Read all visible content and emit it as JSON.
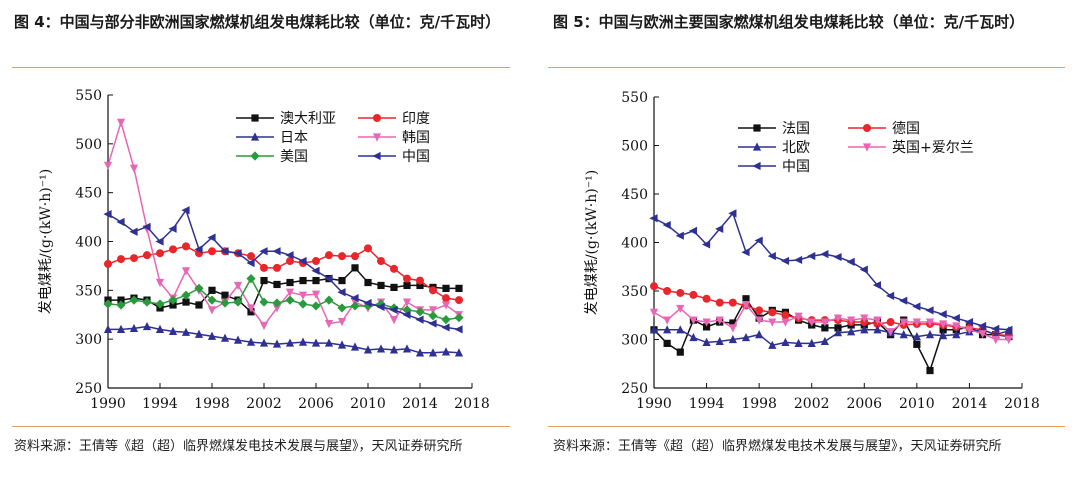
{
  "figures": [
    {
      "title": "图 4：中国与部分非欧洲国家燃煤机组发电煤耗比较（单位：克/千瓦时）",
      "source": "资料来源：王倩等《超（超）临界燃煤发电技术发展与展望》，天风证券研究所"
    },
    {
      "title": "图 5：中国与欧洲主要国家燃煤机组发电煤耗比较（单位：克/千瓦时）",
      "source": "资料来源：王倩等《超（超）临界燃煤发电技术发展与展望》，天风证券研究所"
    }
  ],
  "chart_data": [
    {
      "type": "line",
      "ylabel": "发电煤耗/(g·(kW·h)⁻¹)",
      "xlim": [
        1990,
        2018
      ],
      "ylim": [
        250,
        550
      ],
      "xticks": [
        1990,
        1994,
        1998,
        2002,
        2006,
        2010,
        2014,
        2018
      ],
      "yticks": [
        250,
        300,
        350,
        400,
        450,
        500,
        550
      ],
      "grid": false,
      "legend_position": "top-right",
      "x": [
        1990,
        1991,
        1992,
        1993,
        1994,
        1995,
        1996,
        1997,
        1998,
        1999,
        2000,
        2001,
        2002,
        2003,
        2004,
        2005,
        2006,
        2007,
        2008,
        2009,
        2010,
        2011,
        2012,
        2013,
        2014,
        2015,
        2016,
        2017
      ],
      "series": [
        {
          "name": "澳大利亚",
          "color": "#111111",
          "marker": "square",
          "values": [
            340,
            340,
            342,
            340,
            332,
            335,
            338,
            335,
            350,
            345,
            340,
            328,
            360,
            356,
            358,
            360,
            360,
            362,
            360,
            373,
            358,
            355,
            353,
            355,
            355,
            353,
            352,
            352
          ]
        },
        {
          "name": "印度",
          "color": "#e8262c",
          "marker": "circle",
          "values": [
            377,
            382,
            383,
            386,
            388,
            392,
            395,
            388,
            390,
            390,
            388,
            385,
            373,
            373,
            380,
            378,
            380,
            386,
            385,
            385,
            393,
            380,
            372,
            362,
            360,
            350,
            342,
            340
          ]
        },
        {
          "name": "日本",
          "color": "#2e3192",
          "marker": "triangle-up",
          "values": [
            310,
            310,
            311,
            313,
            310,
            308,
            307,
            305,
            303,
            301,
            299,
            297,
            296,
            295,
            296,
            297,
            296,
            296,
            294,
            292,
            289,
            290,
            289,
            290,
            286,
            286,
            287,
            286
          ]
        },
        {
          "name": "韩国",
          "color": "#e766b5",
          "marker": "triangle-down",
          "values": [
            478,
            522,
            475,
            413,
            358,
            342,
            370,
            350,
            330,
            338,
            355,
            332,
            314,
            332,
            348,
            345,
            346,
            316,
            318,
            338,
            332,
            338,
            320,
            338,
            330,
            330,
            335,
            325
          ]
        },
        {
          "name": "美国",
          "color": "#2b9a3c",
          "marker": "diamond",
          "values": [
            336,
            335,
            340,
            338,
            336,
            340,
            345,
            352,
            340,
            337,
            338,
            362,
            338,
            337,
            340,
            336,
            334,
            340,
            332,
            334,
            334,
            336,
            332,
            330,
            328,
            324,
            320,
            322
          ]
        },
        {
          "name": "中国",
          "color": "#2e3192",
          "marker": "triangle-left",
          "values": [
            428,
            420,
            410,
            415,
            400,
            413,
            432,
            392,
            404,
            390,
            388,
            378,
            390,
            390,
            386,
            380,
            370,
            362,
            348,
            342,
            337,
            333,
            330,
            325,
            320,
            316,
            312,
            310
          ]
        }
      ]
    },
    {
      "type": "line",
      "ylabel": "发电煤耗/(g·(kW·h)⁻¹)",
      "xlim": [
        1990,
        2018
      ],
      "ylim": [
        250,
        550
      ],
      "xticks": [
        1990,
        1994,
        1998,
        2002,
        2006,
        2010,
        2014,
        2018
      ],
      "yticks": [
        250,
        300,
        350,
        400,
        450,
        500,
        550
      ],
      "grid": false,
      "legend_position": "top",
      "x": [
        1990,
        1991,
        1992,
        1993,
        1994,
        1995,
        1996,
        1997,
        1998,
        1999,
        2000,
        2001,
        2002,
        2003,
        2004,
        2005,
        2006,
        2007,
        2008,
        2009,
        2010,
        2011,
        2012,
        2013,
        2014,
        2015,
        2016,
        2017
      ],
      "series": [
        {
          "name": "法国",
          "color": "#111111",
          "marker": "square",
          "values": [
            310,
            296,
            287,
            320,
            313,
            318,
            317,
            342,
            322,
            330,
            328,
            320,
            315,
            312,
            312,
            315,
            315,
            318,
            305,
            320,
            295,
            268,
            310,
            310,
            313,
            305,
            305,
            303
          ]
        },
        {
          "name": "德国",
          "color": "#e8262c",
          "marker": "circle",
          "values": [
            355,
            350,
            348,
            346,
            342,
            338,
            338,
            335,
            330,
            328,
            325,
            322,
            320,
            320,
            320,
            318,
            318,
            316,
            318,
            315,
            316,
            316,
            315,
            313,
            312,
            310,
            305,
            304
          ]
        },
        {
          "name": "北欧",
          "color": "#2e3192",
          "marker": "triangle-up",
          "values": [
            310,
            310,
            310,
            302,
            297,
            298,
            300,
            302,
            305,
            294,
            297,
            296,
            296,
            298,
            307,
            308,
            310,
            310,
            307,
            305,
            303,
            305,
            304,
            305,
            308,
            310,
            305,
            309
          ]
        },
        {
          "name": "英国+爱尔兰",
          "color": "#e766b5",
          "marker": "triangle-down",
          "values": [
            328,
            320,
            332,
            320,
            318,
            320,
            312,
            336,
            320,
            318,
            318,
            324,
            318,
            318,
            322,
            320,
            322,
            320,
            308,
            318,
            318,
            318,
            316,
            314,
            310,
            306,
            300,
            300
          ]
        },
        {
          "name": "中国",
          "color": "#2e3192",
          "marker": "triangle-left",
          "values": [
            425,
            418,
            407,
            412,
            398,
            414,
            430,
            390,
            402,
            386,
            381,
            382,
            386,
            388,
            385,
            380,
            372,
            356,
            345,
            340,
            334,
            330,
            326,
            322,
            318,
            314,
            311,
            310
          ]
        }
      ]
    }
  ]
}
